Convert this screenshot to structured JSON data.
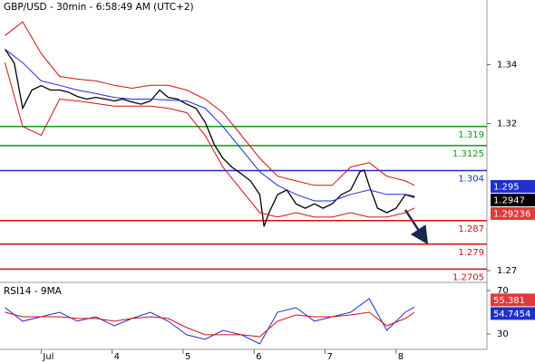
{
  "chart_data": [
    {
      "type": "line",
      "title": "GBP/USD - 30min - 6:58:49 AM (UTC+2)",
      "xlim": [
        2.42,
        9.28
      ],
      "ylim": [
        1.266,
        1.362
      ],
      "yticks": [
        1.27,
        1.32,
        1.34
      ],
      "series": [
        {
          "color": "#000000",
          "x": [
            2.49,
            2.62,
            2.74,
            2.87,
            3.0,
            3.13,
            3.26,
            3.38,
            3.51,
            3.64,
            3.77,
            3.9,
            4.03,
            4.15,
            4.28,
            4.41,
            4.54,
            4.67,
            4.79,
            4.92,
            5.05,
            5.18,
            5.31,
            5.44,
            5.56,
            5.69,
            5.82,
            5.95,
            6.08,
            6.14,
            6.21,
            6.33,
            6.46,
            6.59,
            6.72,
            6.85,
            6.97,
            7.1,
            7.23,
            7.36,
            7.49,
            7.55,
            7.62,
            7.74,
            7.87,
            8.0,
            8.13,
            8.26
          ],
          "values": [
            1.3453,
            1.3406,
            1.3252,
            1.3314,
            1.3329,
            1.3314,
            1.3314,
            1.3307,
            1.3292,
            1.3283,
            1.3289,
            1.3283,
            1.3277,
            1.3283,
            1.3273,
            1.3266,
            1.3277,
            1.3314,
            1.3289,
            1.3283,
            1.3266,
            1.3252,
            1.3205,
            1.3128,
            1.3082,
            1.3051,
            1.3029,
            1.3005,
            1.2958,
            1.285,
            1.2897,
            1.2958,
            1.2974,
            1.2927,
            1.2912,
            1.2927,
            1.2912,
            1.2927,
            1.2958,
            1.2974,
            1.3036,
            1.3042,
            1.2989,
            1.2912,
            1.2897,
            1.2912,
            1.2958,
            1.2949
          ]
        },
        {
          "color": "#1f2fd0",
          "x": [
            2.49,
            2.74,
            3.0,
            3.26,
            3.51,
            3.77,
            4.03,
            4.28,
            4.54,
            4.79,
            5.05,
            5.31,
            5.56,
            5.82,
            6.08,
            6.33,
            6.59,
            6.85,
            7.1,
            7.36,
            7.62,
            7.87,
            8.13,
            8.26
          ],
          "values": [
            1.3453,
            1.3407,
            1.3345,
            1.333,
            1.3314,
            1.3302,
            1.3289,
            1.3283,
            1.3283,
            1.328,
            1.3277,
            1.3252,
            1.319,
            1.3113,
            1.3036,
            1.299,
            1.2959,
            1.2937,
            1.2937,
            1.2959,
            1.2974,
            1.2959,
            1.2959,
            1.2953
          ]
        },
        {
          "color": "#d01010",
          "x": [
            2.49,
            2.74,
            3.0,
            3.26,
            3.51,
            3.77,
            4.03,
            4.28,
            4.54,
            4.79,
            5.05,
            5.31,
            5.56,
            5.82,
            6.08,
            6.33,
            6.59,
            6.85,
            7.1,
            7.36,
            7.62,
            7.87,
            8.13,
            8.26
          ],
          "values": [
            1.3499,
            1.3546,
            1.3438,
            1.336,
            1.3351,
            1.3345,
            1.333,
            1.332,
            1.333,
            1.333,
            1.3314,
            1.3283,
            1.3237,
            1.316,
            1.3082,
            1.3021,
            1.3005,
            1.299,
            1.299,
            1.3052,
            1.3067,
            1.3021,
            1.3005,
            1.299
          ]
        },
        {
          "color": "#d01010",
          "x": [
            2.49,
            2.74,
            3.0,
            3.26,
            3.51,
            3.77,
            4.03,
            4.28,
            4.54,
            4.79,
            5.05,
            5.31,
            5.56,
            5.82,
            6.08,
            6.33,
            6.59,
            6.85,
            7.1,
            7.36,
            7.62,
            7.87,
            8.13,
            8.26
          ],
          "values": [
            1.3407,
            1.319,
            1.316,
            1.3283,
            1.3277,
            1.3268,
            1.3259,
            1.3259,
            1.3259,
            1.3252,
            1.3237,
            1.316,
            1.3052,
            1.2974,
            1.2897,
            1.2882,
            1.2897,
            1.2882,
            1.2882,
            1.2897,
            1.2882,
            1.2882,
            1.2897,
            1.2913
          ]
        }
      ],
      "levels": [
        {
          "value": 1.319,
          "color": "#129a12"
        },
        {
          "value": 1.3125,
          "color": "#129a12"
        },
        {
          "value": 1.304,
          "color": "#1f2fd0"
        },
        {
          "value": 1.287,
          "color": "#d01010"
        },
        {
          "value": 1.279,
          "color": "#d01010"
        },
        {
          "value": 1.2705,
          "color": "#d01010"
        }
      ],
      "price_markers": [
        {
          "value": 1.295,
          "color": "#1f2fd0"
        },
        {
          "value": 1.2947,
          "color": "#000000"
        },
        {
          "value": 1.29236,
          "color": "#e03a3a"
        }
      ]
    },
    {
      "type": "line",
      "title": "RSI14 - 9MA",
      "xlim": [
        2.42,
        9.28
      ],
      "xticks": [
        {
          "value": 3,
          "label": "Jul"
        },
        4,
        5,
        6,
        7,
        8
      ],
      "ylim": [
        15.8,
        75
      ],
      "yticks": [
        30,
        70
      ],
      "series": [
        {
          "color": "#1f2fd0",
          "x": [
            2.49,
            2.74,
            3.0,
            3.26,
            3.51,
            3.77,
            4.03,
            4.28,
            4.54,
            4.79,
            5.05,
            5.31,
            5.56,
            5.82,
            6.08,
            6.33,
            6.59,
            6.85,
            7.1,
            7.36,
            7.62,
            7.87,
            8.13,
            8.26
          ],
          "values": [
            54.2,
            41.7,
            45.8,
            50,
            41.7,
            45.8,
            37.5,
            44.2,
            50,
            41.7,
            29.2,
            25,
            33.3,
            29.2,
            20.8,
            50,
            54.2,
            41.7,
            45.8,
            50,
            62.5,
            33.3,
            50,
            54.7
          ]
        },
        {
          "color": "#d01010",
          "x": [
            2.49,
            2.74,
            3.0,
            3.26,
            3.51,
            3.77,
            4.03,
            4.28,
            4.54,
            4.79,
            5.05,
            5.31,
            5.56,
            5.82,
            6.08,
            6.33,
            6.59,
            6.85,
            7.1,
            7.36,
            7.62,
            7.87,
            8.13,
            8.26
          ],
          "values": [
            50,
            45.8,
            45.8,
            45.8,
            44.2,
            44.2,
            41.7,
            44.2,
            45.8,
            44.2,
            35.8,
            29.2,
            29.2,
            29.2,
            27.5,
            41.7,
            47.5,
            45.8,
            45.8,
            47.5,
            50,
            37.5,
            44.2,
            50
          ]
        }
      ],
      "price_markers": [
        {
          "value": 55.381,
          "color": "#e03a3a"
        },
        {
          "value": 54.7454,
          "color": "#1f2fd0"
        }
      ]
    }
  ]
}
